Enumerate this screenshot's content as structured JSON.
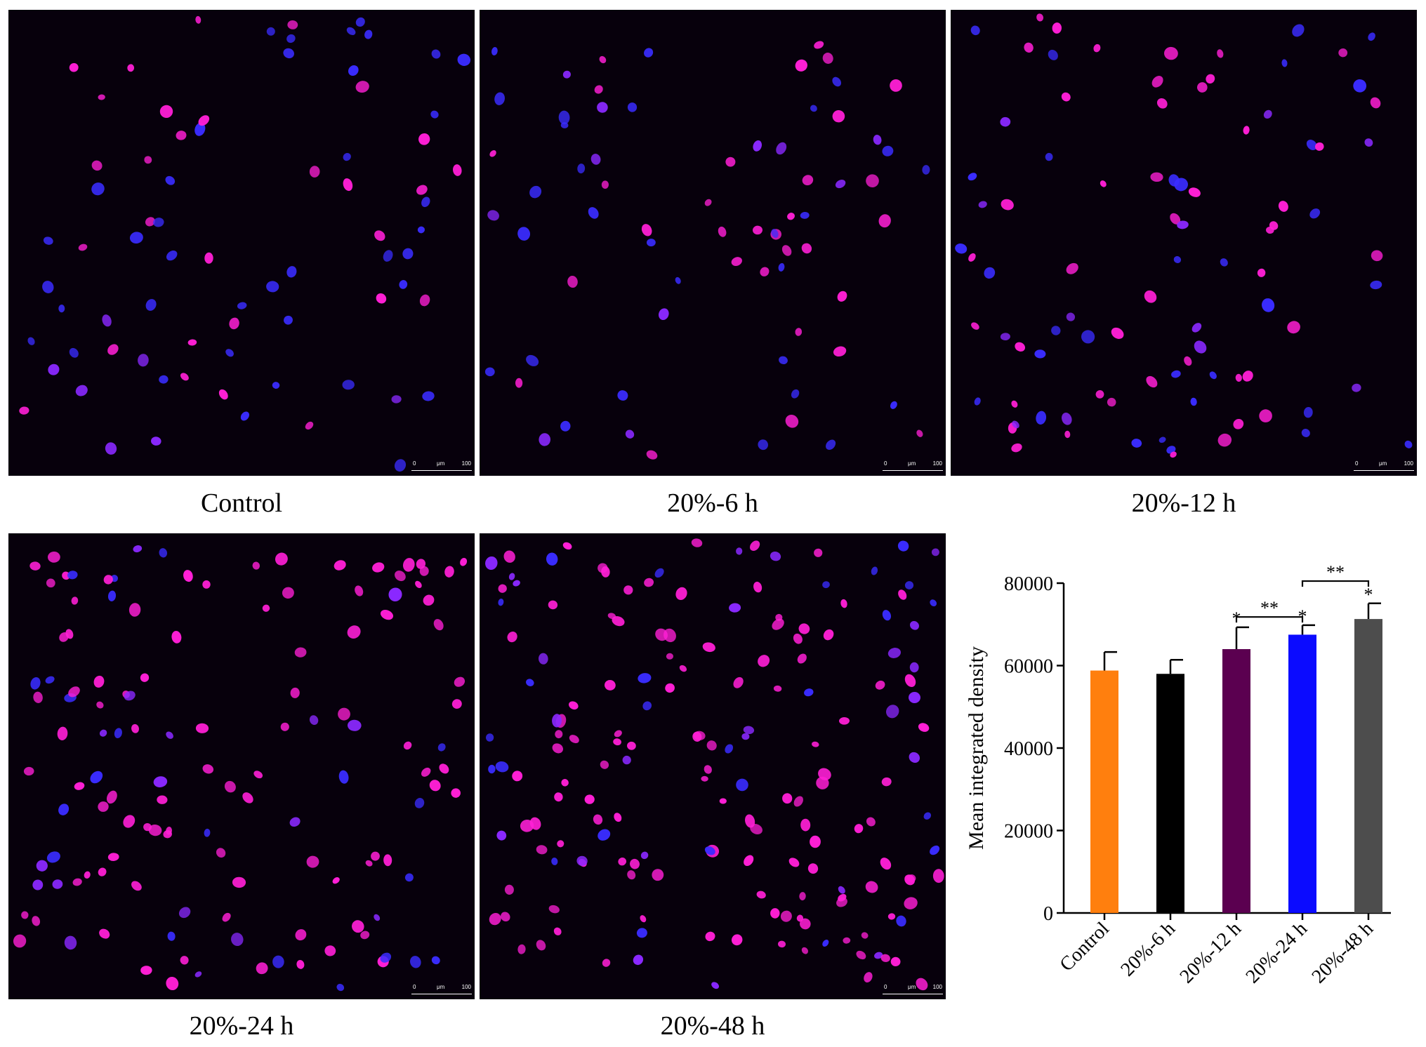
{
  "panels": [
    {
      "caption": "Control",
      "seed": 11,
      "pink_ratio": 0.3,
      "density": 75
    },
    {
      "caption": "20%-6 h",
      "seed": 23,
      "pink_ratio": 0.5,
      "density": 70
    },
    {
      "caption": "20%-12 h",
      "seed": 37,
      "pink_ratio": 0.55,
      "density": 90
    },
    {
      "caption": "20%-24 h",
      "seed": 51,
      "pink_ratio": 0.7,
      "density": 130
    },
    {
      "caption": "20%-48 h",
      "seed": 67,
      "pink_ratio": 0.72,
      "density": 170
    }
  ],
  "scalebar": {
    "start": "0",
    "unit": "μm",
    "end": "100"
  },
  "colors": {
    "background": "#07000c",
    "nucleus_blue": "#3a2cff",
    "nucleus_pink": "#ff1fd6",
    "nucleus_violet": "#8a28ff"
  },
  "chart_data": {
    "type": "bar",
    "categories": [
      "Control",
      "20%-6 h",
      "20%-12 h",
      "20%-24 h",
      "20%-48 h"
    ],
    "values": [
      58800,
      58000,
      64000,
      67500,
      71300
    ],
    "errors": [
      4500,
      3400,
      5300,
      2300,
      3800
    ],
    "colors": [
      "#ff7f0e",
      "#000000",
      "#5b0050",
      "#0b0bff",
      "#4d4d4d"
    ],
    "ylabel": "Mean integrated density",
    "ylim": [
      0,
      80000
    ],
    "yticks": [
      "0",
      "20000",
      "40000",
      "60000",
      "80000"
    ],
    "significance": [
      "",
      "",
      "*",
      "*",
      "*"
    ],
    "brackets": [
      {
        "from": "20%-12 h",
        "to": "20%-24 h",
        "label": "**",
        "at": 71800
      },
      {
        "from": "20%-24 h",
        "to": "20%-48 h",
        "label": "**",
        "at": 80500
      }
    ]
  }
}
